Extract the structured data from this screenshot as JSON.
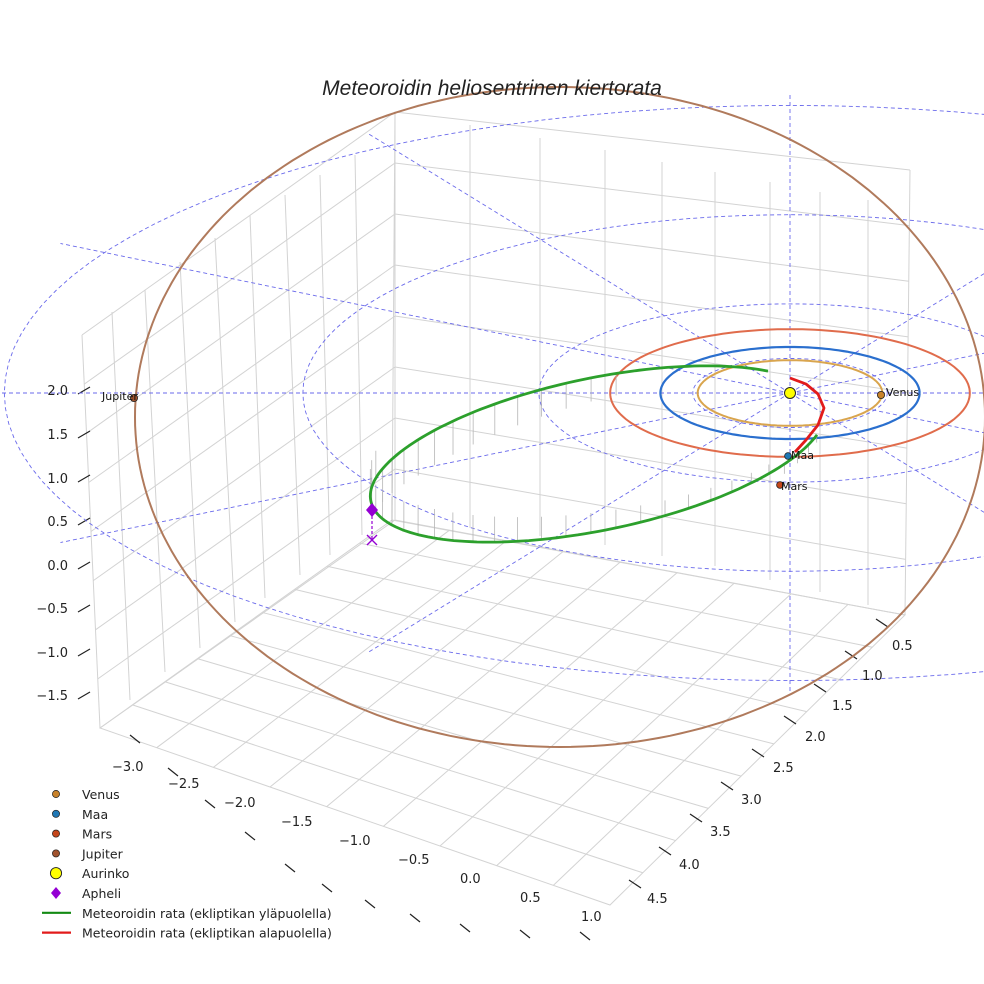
{
  "chart_data": {
    "type": "line3d",
    "title": "Meteoroidin heliosentrinen kiertorata",
    "x_ticks": [
      "0.5",
      "1.0",
      "1.5",
      "2.0",
      "2.5",
      "3.0",
      "3.5",
      "4.0",
      "4.5"
    ],
    "y_ticks": [
      "−3.0",
      "−2.5",
      "−2.0",
      "−1.5",
      "−1.0",
      "−0.5",
      "0.0",
      "0.5",
      "1.0"
    ],
    "z_ticks": [
      "2.0",
      "1.5",
      "1.0",
      "0.5",
      "0.0",
      "−0.5",
      "−1.0",
      "−1.5"
    ],
    "planet_labels": {
      "jupiter": "Jupiter",
      "venus": "Venus",
      "maa": "Maa",
      "mars": "Mars"
    },
    "orbit_radii_au": {
      "venus": 0.72,
      "maa": 1.0,
      "mars": 1.52,
      "jupiter": 5.2
    },
    "meteoroid_orbit": {
      "perihelion_au": 0.2,
      "aphelion_au": 2.6,
      "inclination_deg": 20
    },
    "colors": {
      "venus": "#c8822a",
      "maa": "#1f77b4",
      "mars": "#d0542b",
      "jupiter": "#a0653d",
      "venus_orbit": "#d9a54e",
      "maa_orbit": "#2a6fce",
      "mars_orbit": "#e06c4c",
      "jupiter_orbit": "#b07a5c",
      "sun": "#ffff00",
      "aphelion": "#9400d3",
      "above": "#2ca02c",
      "below": "#e21b1b",
      "grid": "#6a6aeb"
    },
    "legend": [
      {
        "label": "Venus",
        "marker": "dot",
        "color": "#c8822a"
      },
      {
        "label": "Maa",
        "marker": "dot",
        "color": "#1f77b4"
      },
      {
        "label": "Mars",
        "marker": "dot",
        "color": "#c4461a"
      },
      {
        "label": "Jupiter",
        "marker": "dot",
        "color": "#a0522d"
      },
      {
        "label": "Aurinko",
        "marker": "sun",
        "color": "#ffff00"
      },
      {
        "label": "Apheli",
        "marker": "diamond",
        "color": "#9400d3"
      },
      {
        "label": "Meteoroidin rata (ekliptikan yläpuolella)",
        "marker": "line",
        "color": "#138a13"
      },
      {
        "label": "Meteoroidin rata (ekliptikan alapuolella)",
        "marker": "line",
        "color": "#e21b1b"
      }
    ]
  }
}
